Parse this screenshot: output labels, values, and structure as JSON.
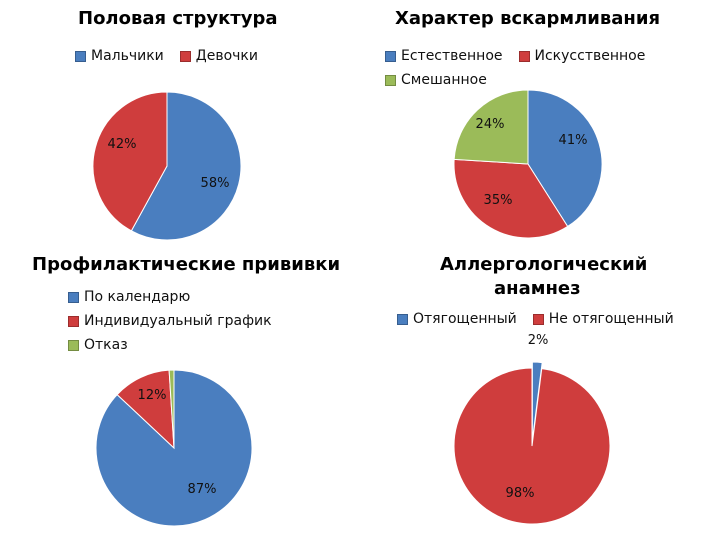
{
  "colors": {
    "blue": "#4a7ebf",
    "red": "#cf3d3d",
    "green": "#9bbb59"
  },
  "chart_data": [
    {
      "type": "pie",
      "title": "Половая структура",
      "categories": [
        "Мальчики",
        "Девочки"
      ],
      "values": [
        58,
        42
      ],
      "labels": [
        "58%",
        "42%"
      ],
      "colors": [
        "#4a7ebf",
        "#cf3d3d"
      ],
      "legend": "top"
    },
    {
      "type": "pie",
      "title": "Характер вскармливания",
      "categories": [
        "Естественное",
        "Искусственное",
        "Смешанное"
      ],
      "values": [
        41,
        35,
        24
      ],
      "labels": [
        "41%",
        "35%",
        "24%"
      ],
      "colors": [
        "#4a7ebf",
        "#cf3d3d",
        "#9bbb59"
      ],
      "legend": "top"
    },
    {
      "type": "pie",
      "title": "Профилактические прививки",
      "categories": [
        "По календарю",
        "Индивидуальный график",
        "Отказ"
      ],
      "values": [
        87,
        12,
        1
      ],
      "labels": [
        "87%",
        "12%",
        ""
      ],
      "colors": [
        "#4a7ebf",
        "#cf3d3d",
        "#9bbb59"
      ],
      "legend": "top"
    },
    {
      "type": "pie",
      "title": "Аллергологический анамнез",
      "title_lines": [
        "Аллергологический",
        "анамнез"
      ],
      "categories": [
        "Отягощенный",
        "Не отягощенный"
      ],
      "values": [
        2,
        98
      ],
      "labels": [
        "2%",
        "98%"
      ],
      "colors": [
        "#4a7ebf",
        "#cf3d3d"
      ],
      "legend": "top"
    }
  ]
}
